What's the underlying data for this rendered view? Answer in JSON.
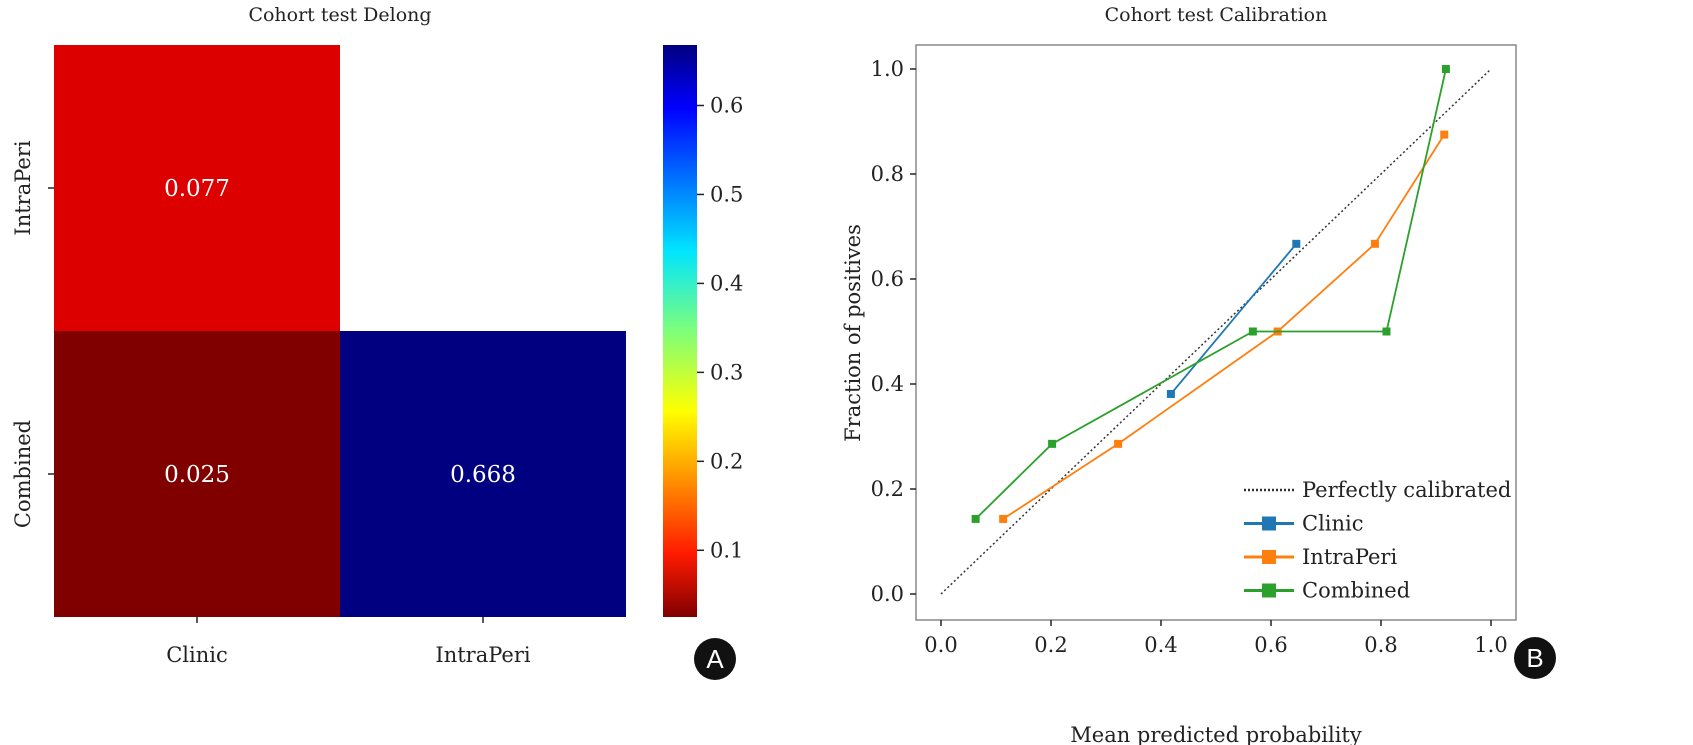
{
  "chart_data": [
    {
      "type": "heatmap",
      "title": "Cohort test Delong",
      "rows": [
        "IntraPeri",
        "Combined"
      ],
      "columns": [
        "Clinic",
        "IntraPeri"
      ],
      "cells": [
        {
          "row": "IntraPeri",
          "col": "Clinic",
          "value": 0.077,
          "label": "0.077",
          "color": "#dc0000"
        },
        {
          "row": "Combined",
          "col": "Clinic",
          "value": 0.025,
          "label": "0.025",
          "color": "#800000"
        },
        {
          "row": "Combined",
          "col": "IntraPeri",
          "value": 0.668,
          "label": "0.668",
          "color": "#000080"
        }
      ],
      "colorbar": {
        "colormap": "jet_r",
        "range": [
          0.025,
          0.668
        ],
        "ticks": [
          "0.1",
          "0.2",
          "0.3",
          "0.4",
          "0.5",
          "0.6"
        ]
      },
      "panel_label": "A"
    },
    {
      "type": "line",
      "title": "Cohort test Calibration",
      "xlabel": "Mean predicted probability",
      "ylabel": "Fraction of positives",
      "xlim": [
        -0.05,
        1.05
      ],
      "ylim": [
        -0.05,
        1.05
      ],
      "xticks": [
        "0.0",
        "0.2",
        "0.4",
        "0.6",
        "0.8",
        "1.0"
      ],
      "yticks": [
        "0.0",
        "0.2",
        "0.4",
        "0.6",
        "0.8",
        "1.0"
      ],
      "legend_position": "lower-right",
      "reference": {
        "name": "Perfectly calibrated",
        "x": [
          0,
          1
        ],
        "y": [
          0,
          1
        ],
        "color": "#333333"
      },
      "series": [
        {
          "name": "Clinic",
          "color": "#1f77b4",
          "x": [
            0.418,
            0.646
          ],
          "y": [
            0.381,
            0.667
          ]
        },
        {
          "name": "IntraPeri",
          "color": "#ff7f0e",
          "x": [
            0.113,
            0.322,
            0.612,
            0.789,
            0.915
          ],
          "y": [
            0.143,
            0.286,
            0.5,
            0.667,
            0.875
          ]
        },
        {
          "name": "Combined",
          "color": "#2ca02c",
          "x": [
            0.063,
            0.202,
            0.567,
            0.81,
            0.918
          ],
          "y": [
            0.143,
            0.286,
            0.5,
            0.5,
            1.0
          ]
        }
      ],
      "panel_label": "B"
    }
  ]
}
